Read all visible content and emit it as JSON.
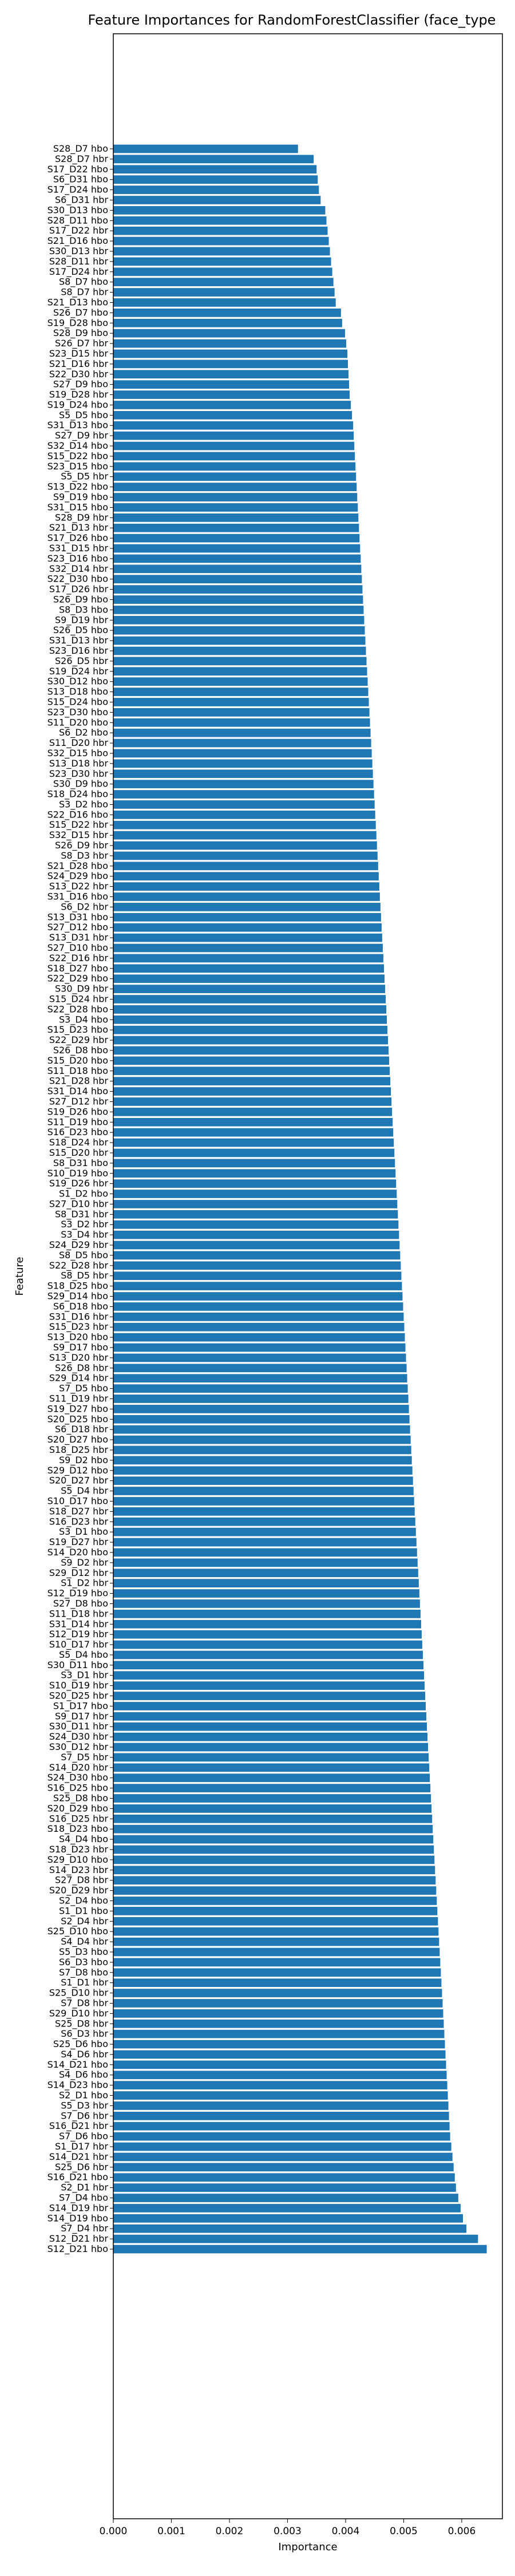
{
  "chart_data": {
    "type": "bar",
    "orientation": "horizontal",
    "title": "Feature Importances for RandomForestClassifier (face_type",
    "xlabel": "Importance",
    "ylabel": "Feature",
    "xlim": [
      0,
      0.0067
    ],
    "xticks": [
      "0.000",
      "0.001",
      "0.002",
      "0.003",
      "0.004",
      "0.005",
      "0.006"
    ],
    "grid": false,
    "bar_color": "#1f77b4",
    "categories": [
      "S28_D7 hbo",
      "S28_D7 hbr",
      "S17_D22 hbo",
      "S6_D31 hbo",
      "S17_D24 hbo",
      "S6_D31 hbr",
      "S30_D13 hbo",
      "S28_D11 hbo",
      "S17_D22 hbr",
      "S21_D16 hbo",
      "S30_D13 hbr",
      "S28_D11 hbr",
      "S17_D24 hbr",
      "S8_D7 hbo",
      "S8_D7 hbr",
      "S21_D13 hbo",
      "S26_D7 hbo",
      "S19_D28 hbo",
      "S28_D9 hbo",
      "S26_D7 hbr",
      "S23_D15 hbr",
      "S21_D16 hbr",
      "S22_D30 hbr",
      "S27_D9 hbo",
      "S19_D28 hbr",
      "S19_D24 hbo",
      "S5_D5 hbo",
      "S31_D13 hbo",
      "S27_D9 hbr",
      "S32_D14 hbo",
      "S15_D22 hbo",
      "S23_D15 hbo",
      "S5_D5 hbr",
      "S13_D22 hbo",
      "S9_D19 hbo",
      "S31_D15 hbo",
      "S28_D9 hbr",
      "S21_D13 hbr",
      "S17_D26 hbo",
      "S31_D15 hbr",
      "S23_D16 hbo",
      "S32_D14 hbr",
      "S22_D30 hbo",
      "S17_D26 hbr",
      "S26_D9 hbo",
      "S8_D3 hbo",
      "S9_D19 hbr",
      "S26_D5 hbo",
      "S31_D13 hbr",
      "S23_D16 hbr",
      "S26_D5 hbr",
      "S19_D24 hbr",
      "S30_D12 hbo",
      "S13_D18 hbo",
      "S15_D24 hbo",
      "S23_D30 hbo",
      "S11_D20 hbo",
      "S6_D2 hbo",
      "S11_D20 hbr",
      "S32_D15 hbo",
      "S13_D18 hbr",
      "S23_D30 hbr",
      "S30_D9 hbo",
      "S18_D24 hbo",
      "S3_D2 hbo",
      "S22_D16 hbo",
      "S15_D22 hbr",
      "S32_D15 hbr",
      "S26_D9 hbr",
      "S8_D3 hbr",
      "S21_D28 hbo",
      "S24_D29 hbo",
      "S13_D22 hbr",
      "S31_D16 hbo",
      "S6_D2 hbr",
      "S13_D31 hbo",
      "S27_D12 hbo",
      "S13_D31 hbr",
      "S27_D10 hbo",
      "S22_D16 hbr",
      "S18_D27 hbo",
      "S22_D29 hbo",
      "S30_D9 hbr",
      "S15_D24 hbr",
      "S22_D28 hbo",
      "S3_D4 hbo",
      "S15_D23 hbo",
      "S22_D29 hbr",
      "S26_D8 hbo",
      "S15_D20 hbo",
      "S11_D18 hbo",
      "S21_D28 hbr",
      "S31_D14 hbo",
      "S27_D12 hbr",
      "S19_D26 hbo",
      "S11_D19 hbo",
      "S16_D23 hbo",
      "S18_D24 hbr",
      "S15_D20 hbr",
      "S8_D31 hbo",
      "S10_D19 hbo",
      "S19_D26 hbr",
      "S1_D2 hbo",
      "S27_D10 hbr",
      "S8_D31 hbr",
      "S3_D2 hbr",
      "S3_D4 hbr",
      "S24_D29 hbr",
      "S8_D5 hbo",
      "S22_D28 hbr",
      "S8_D5 hbr",
      "S18_D25 hbo",
      "S29_D14 hbo",
      "S6_D18 hbo",
      "S31_D16 hbr",
      "S15_D23 hbr",
      "S13_D20 hbo",
      "S9_D17 hbo",
      "S13_D20 hbr",
      "S26_D8 hbr",
      "S29_D14 hbr",
      "S7_D5 hbo",
      "S11_D19 hbr",
      "S19_D27 hbo",
      "S20_D25 hbo",
      "S6_D18 hbr",
      "S20_D27 hbo",
      "S18_D25 hbr",
      "S9_D2 hbo",
      "S29_D12 hbo",
      "S20_D27 hbr",
      "S5_D4 hbr",
      "S10_D17 hbo",
      "S18_D27 hbr",
      "S16_D23 hbr",
      "S3_D1 hbo",
      "S19_D27 hbr",
      "S14_D20 hbo",
      "S9_D2 hbr",
      "S29_D12 hbr",
      "S1_D2 hbr",
      "S12_D19 hbo",
      "S27_D8 hbo",
      "S11_D18 hbr",
      "S31_D14 hbr",
      "S12_D19 hbr",
      "S10_D17 hbr",
      "S5_D4 hbo",
      "S30_D11 hbo",
      "S3_D1 hbr",
      "S10_D19 hbr",
      "S20_D25 hbr",
      "S1_D17 hbo",
      "S9_D17 hbr",
      "S30_D11 hbr",
      "S24_D30 hbr",
      "S30_D12 hbr",
      "S7_D5 hbr",
      "S14_D20 hbr",
      "S24_D30 hbo",
      "S16_D25 hbo",
      "S25_D8 hbo",
      "S20_D29 hbo",
      "S16_D25 hbr",
      "S18_D23 hbo",
      "S4_D4 hbo",
      "S18_D23 hbr",
      "S29_D10 hbo",
      "S14_D23 hbr",
      "S27_D8 hbr",
      "S20_D29 hbr",
      "S2_D4 hbo",
      "S1_D1 hbo",
      "S2_D4 hbr",
      "S25_D10 hbo",
      "S4_D4 hbr",
      "S5_D3 hbo",
      "S6_D3 hbo",
      "S7_D8 hbo",
      "S1_D1 hbr",
      "S25_D10 hbr",
      "S7_D8 hbr",
      "S29_D10 hbr",
      "S25_D8 hbr",
      "S6_D3 hbr",
      "S25_D6 hbo",
      "S4_D6 hbr",
      "S14_D21 hbo",
      "S4_D6 hbo",
      "S14_D23 hbo",
      "S2_D1 hbo",
      "S5_D3 hbr",
      "S7_D6 hbr",
      "S16_D21 hbr",
      "S7_D6 hbo",
      "S1_D17 hbr",
      "S14_D21 hbr",
      "S25_D6 hbr",
      "S16_D21 hbo",
      "S2_D1 hbr",
      "S7_D4 hbo",
      "S14_D19 hbr",
      "S14_D19 hbo",
      "S7_D4 hbr",
      "S12_D21 hbr",
      "S12_D21 hbo"
    ],
    "values": [
      0.00318,
      0.00345,
      0.0035,
      0.00352,
      0.00354,
      0.00357,
      0.00365,
      0.00367,
      0.00369,
      0.00371,
      0.00373,
      0.00375,
      0.00377,
      0.00379,
      0.00381,
      0.00383,
      0.00392,
      0.00394,
      0.00399,
      0.00401,
      0.00403,
      0.00404,
      0.00405,
      0.00406,
      0.00407,
      0.00409,
      0.00411,
      0.00413,
      0.00414,
      0.00415,
      0.00416,
      0.00417,
      0.00418,
      0.00419,
      0.0042,
      0.00421,
      0.00422,
      0.00423,
      0.00424,
      0.00425,
      0.00426,
      0.00427,
      0.00428,
      0.00429,
      0.0043,
      0.00431,
      0.00432,
      0.00433,
      0.00434,
      0.00435,
      0.00436,
      0.00437,
      0.00438,
      0.00439,
      0.0044,
      0.00441,
      0.00442,
      0.00443,
      0.00444,
      0.00445,
      0.00446,
      0.00447,
      0.00448,
      0.00449,
      0.0045,
      0.00451,
      0.00452,
      0.00453,
      0.00454,
      0.00455,
      0.00456,
      0.00457,
      0.00458,
      0.00459,
      0.0046,
      0.00461,
      0.00462,
      0.00463,
      0.00464,
      0.00465,
      0.00466,
      0.00467,
      0.00468,
      0.00469,
      0.0047,
      0.00471,
      0.00472,
      0.00473,
      0.00474,
      0.00475,
      0.00476,
      0.00477,
      0.00478,
      0.00479,
      0.0048,
      0.00481,
      0.00482,
      0.00483,
      0.00484,
      0.00485,
      0.00486,
      0.00487,
      0.00488,
      0.00489,
      0.0049,
      0.00491,
      0.00492,
      0.00493,
      0.00494,
      0.00495,
      0.00496,
      0.00497,
      0.00498,
      0.00499,
      0.005,
      0.00501,
      0.00502,
      0.00503,
      0.00504,
      0.00505,
      0.00506,
      0.00507,
      0.00508,
      0.00509,
      0.0051,
      0.00511,
      0.00512,
      0.00513,
      0.00514,
      0.00515,
      0.00516,
      0.00517,
      0.00518,
      0.00519,
      0.0052,
      0.00521,
      0.00522,
      0.00523,
      0.00524,
      0.00525,
      0.00526,
      0.00527,
      0.00528,
      0.00529,
      0.0053,
      0.00531,
      0.00532,
      0.00533,
      0.00534,
      0.00535,
      0.00536,
      0.00537,
      0.00538,
      0.00539,
      0.0054,
      0.00541,
      0.00542,
      0.00543,
      0.00544,
      0.00545,
      0.00546,
      0.00547,
      0.00548,
      0.00549,
      0.0055,
      0.00551,
      0.00552,
      0.00553,
      0.00554,
      0.00555,
      0.00556,
      0.00557,
      0.00558,
      0.00559,
      0.0056,
      0.00561,
      0.00562,
      0.00563,
      0.00564,
      0.00565,
      0.00566,
      0.00567,
      0.00568,
      0.00569,
      0.0057,
      0.00571,
      0.00572,
      0.00573,
      0.00574,
      0.00575,
      0.00576,
      0.00577,
      0.00578,
      0.00579,
      0.0058,
      0.00582,
      0.00584,
      0.00586,
      0.00588,
      0.0059,
      0.00594,
      0.00598,
      0.00602,
      0.00608,
      0.00628,
      0.00643
    ]
  }
}
